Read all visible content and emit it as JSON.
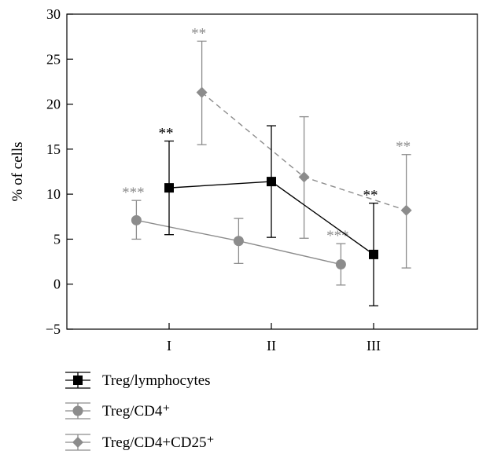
{
  "chart_data": {
    "type": "line",
    "title": "",
    "xlabel": "",
    "ylabel": "% of cells",
    "categories": [
      "I",
      "II",
      "III"
    ],
    "ylim": [
      -5,
      30
    ],
    "yticks": [
      -5,
      0,
      5,
      10,
      15,
      20,
      25,
      30
    ],
    "grid": false,
    "legend_position": "bottom-left",
    "series": [
      {
        "name": "Treg/lymphocytes",
        "marker": "square",
        "line_style": "solid",
        "color": "#000000",
        "values": [
          10.7,
          11.4,
          3.3
        ],
        "error_upper": [
          15.9,
          17.6,
          9.0
        ],
        "error_lower": [
          5.5,
          5.2,
          -2.4
        ],
        "annotations": [
          "**",
          "",
          "**"
        ],
        "x_offset": 0
      },
      {
        "name": "Treg/CD4⁺",
        "marker": "circle",
        "line_style": "solid",
        "color": "#8c8c8c",
        "values": [
          7.1,
          4.8,
          2.2
        ],
        "error_upper": [
          9.3,
          7.3,
          4.5
        ],
        "error_lower": [
          5.0,
          2.3,
          -0.1
        ],
        "annotations": [
          "***",
          "",
          "***"
        ],
        "x_offset": -0.32
      },
      {
        "name": "Treg/CD4+CD25⁺",
        "marker": "diamond",
        "line_style": "dashed",
        "color": "#8c8c8c",
        "values": [
          21.3,
          11.9,
          8.2
        ],
        "error_upper": [
          27.0,
          18.6,
          14.4
        ],
        "error_lower": [
          15.5,
          5.1,
          1.8
        ],
        "annotations": [
          "**",
          "",
          "**"
        ],
        "x_offset": 0.32
      }
    ]
  }
}
